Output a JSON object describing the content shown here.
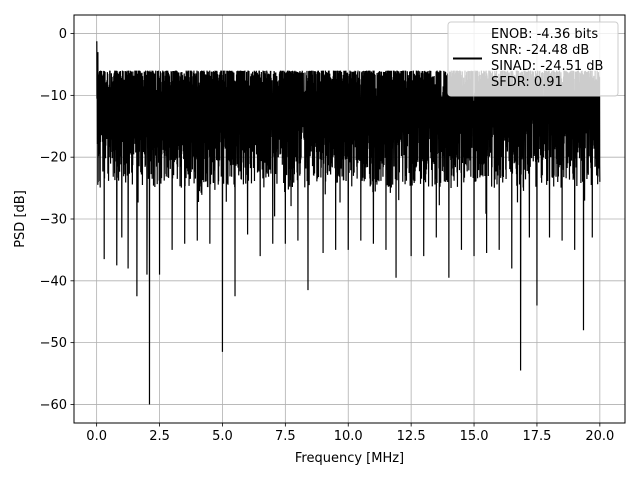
{
  "chart_data": {
    "type": "line",
    "title": "",
    "xlabel": "Frequency [MHz]",
    "ylabel": "PSD [dB]",
    "xlim": [
      -0.9,
      21.0
    ],
    "ylim": [
      -63.0,
      3.0
    ],
    "x_ticks": [
      0.0,
      2.5,
      5.0,
      7.5,
      10.0,
      12.5,
      15.0,
      17.5,
      20.0
    ],
    "x_tick_labels": [
      "0.0",
      "2.5",
      "5.0",
      "7.5",
      "10.0",
      "12.5",
      "15.0",
      "17.5",
      "20.0"
    ],
    "y_ticks": [
      0,
      -10,
      -20,
      -30,
      -40,
      -50,
      -60
    ],
    "y_tick_labels": [
      "0",
      "−10",
      "−20",
      "−30",
      "−40",
      "−50",
      "−60"
    ],
    "grid": true,
    "legend_position": "top-right",
    "series": [
      {
        "name": "ENOB: -4.36 bits\nSNR: -24.48 dB\nSINAD: -24.51 dB\nSFDR: 0.91",
        "color": "#000000",
        "description": "noise-like PSD, dense between about -5 dB and -25 dB",
        "x": [
          0.0,
          0.02,
          0.05,
          0.1,
          0.3,
          0.5,
          0.8,
          1.0,
          1.25,
          1.6,
          2.0,
          2.1,
          2.5,
          3.0,
          3.5,
          4.0,
          4.5,
          5.0,
          5.5,
          6.0,
          6.5,
          7.0,
          7.5,
          8.0,
          8.4,
          9.0,
          9.5,
          10.0,
          10.5,
          11.0,
          11.5,
          11.9,
          12.5,
          13.0,
          13.5,
          14.0,
          14.5,
          15.0,
          15.5,
          16.0,
          16.5,
          16.85,
          17.2,
          17.5,
          18.0,
          18.5,
          19.0,
          19.35,
          19.7,
          20.0
        ],
        "y": [
          -1.5,
          -8.0,
          -3.0,
          -12.0,
          -36.5,
          -20.0,
          -37.5,
          -33.0,
          -38.0,
          -42.5,
          -39.0,
          -60.0,
          -39.0,
          -35.0,
          -34.0,
          -33.5,
          -34.0,
          -51.5,
          -42.5,
          -32.5,
          -36.0,
          -34.0,
          -34.0,
          -33.5,
          -41.5,
          -35.5,
          -35.0,
          -35.0,
          -33.5,
          -34.0,
          -35.0,
          -39.5,
          -36.0,
          -36.0,
          -33.0,
          -39.5,
          -35.0,
          -36.0,
          -35.5,
          -35.0,
          -38.0,
          -54.5,
          -33.0,
          -44.0,
          -33.0,
          -33.5,
          -35.0,
          -48.0,
          -33.0,
          -24.0
        ]
      }
    ]
  }
}
